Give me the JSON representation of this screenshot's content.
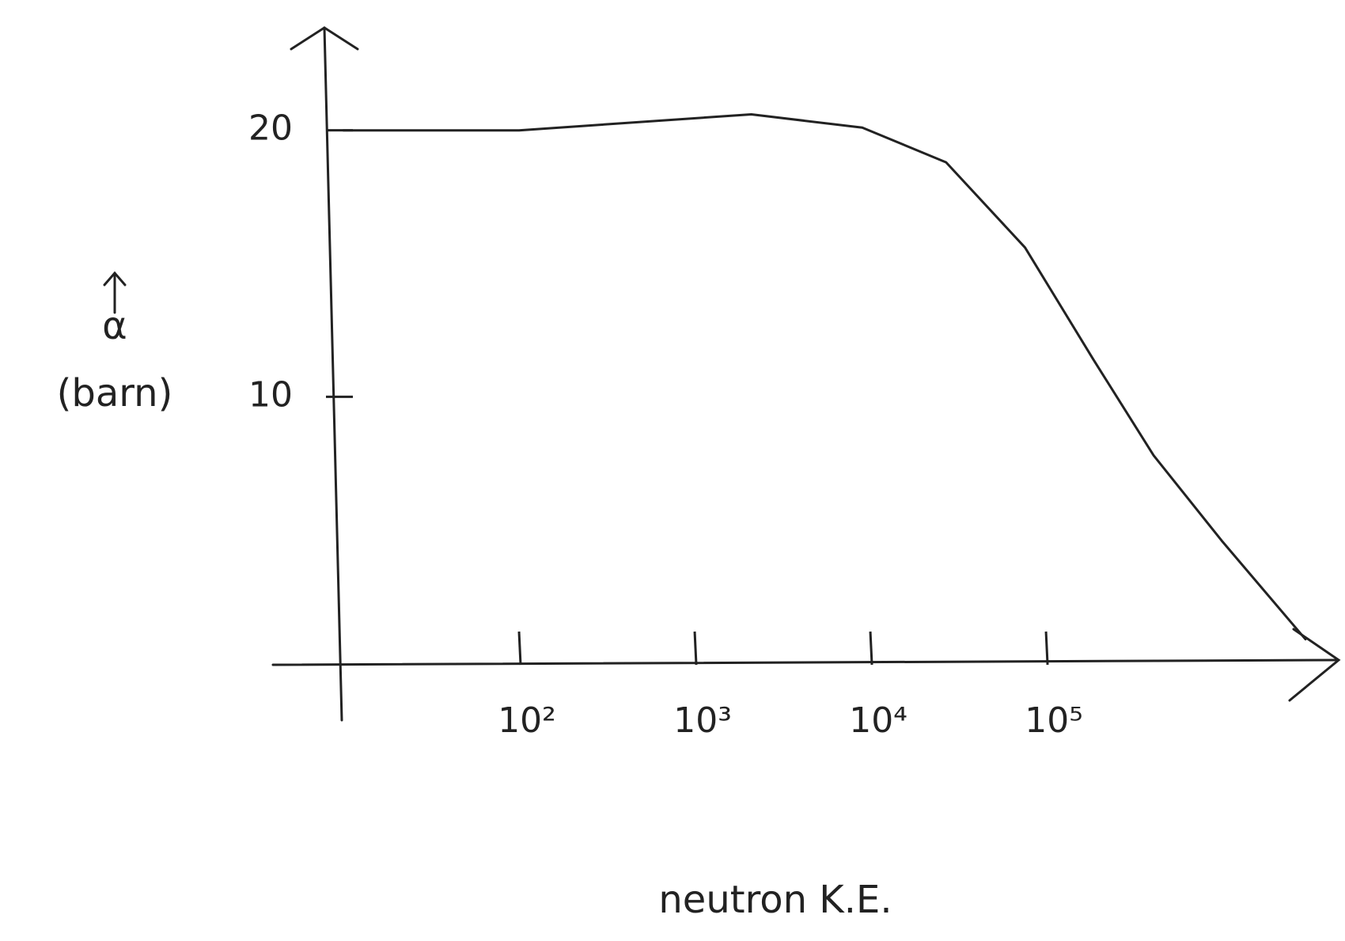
{
  "chart_data": {
    "type": "line",
    "ylabel": "α",
    "yunit": "(barn)",
    "xlabel": "neutron K.E.",
    "x": [
      10,
      100,
      2100,
      9000,
      27000,
      76000,
      186000,
      410000,
      1000000,
      3000000
    ],
    "values": [
      20,
      20,
      20.6,
      20.1,
      18.8,
      15.6,
      11.4,
      7.8,
      4.6,
      0.9
    ],
    "color": "#222222",
    "xscale": "log",
    "xlim": [
      10,
      3000000
    ],
    "xticks": [
      {
        "value": 100,
        "label": "10²"
      },
      {
        "value": 1000,
        "label": "10³"
      },
      {
        "value": 10000,
        "label": "10⁴"
      },
      {
        "value": 100000,
        "label": "10⁵"
      }
    ],
    "ylim": [
      0,
      24
    ],
    "yticks": [
      10,
      20
    ],
    "grid": false
  }
}
